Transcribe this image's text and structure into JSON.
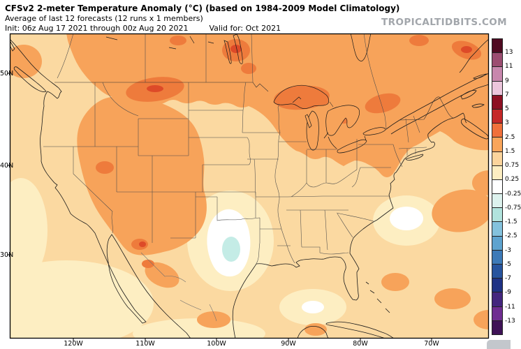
{
  "header": {
    "title": "CFSv2 2-meter Temperature Anomaly (°C) (based on 1984-2009 Model Climatology)",
    "subtitle": "Average of last 12 forecasts (12 runs x 1 members)",
    "init_label": "Init: 06z Aug 17 2021 through 00z Aug 20 2021",
    "valid_label": "Valid for: Oct 2021",
    "watermark": "TROPICALTIDBITS.COM"
  },
  "map": {
    "lat_labels": [
      "50N",
      "40N",
      "30N"
    ],
    "lon_labels": [
      "120W",
      "110W",
      "100W",
      "90W",
      "80W",
      "70W"
    ],
    "features": [
      {
        "region": "Western US, northern Plains, Great Lakes, Northeast, Canada",
        "anomaly": "+1.5 to +3 (orange)"
      },
      {
        "region": "Montana / Lake Superior / southern Quebec",
        "anomaly": "+3 to +5 (red-orange patches)"
      },
      {
        "region": "Central Texas",
        "anomaly": "-0.25 to -0.75 (white / pale cyan)"
      },
      {
        "region": "Oceans and southern tier",
        "anomaly": "+0.25 to +1.5 (cream / light orange)"
      }
    ]
  },
  "colorbar": {
    "tick_labels": [
      "13",
      "11",
      "9",
      "7",
      "5",
      "3",
      "2.5",
      "1.5",
      "0.75",
      "0.25",
      "-0.25",
      "-0.75",
      "-1.5",
      "-2.5",
      "-3",
      "-5",
      "-7",
      "-9",
      "-11",
      "-13"
    ],
    "colors": [
      "#4f0a21",
      "#9c4d71",
      "#c887ad",
      "#ecc6dc",
      "#8e1023",
      "#c52828",
      "#f0703b",
      "#f9a55b",
      "#fbd49c",
      "#fdeec2",
      "#ffffff",
      "#ddf2ee",
      "#b1e3dd",
      "#84c2dd",
      "#5ea3cf",
      "#3d7ab8",
      "#27549e",
      "#1f3285",
      "#44267e",
      "#6f2d91",
      "#3f1257"
    ]
  },
  "palette": {
    "base_light_orange": "#fbd9a1",
    "cream": "#fdeec2",
    "white": "#ffffff",
    "orange": "#f7a35a",
    "orange_red": "#ee7b3c",
    "red": "#dd4a28",
    "cyan": "#c4ece6"
  }
}
